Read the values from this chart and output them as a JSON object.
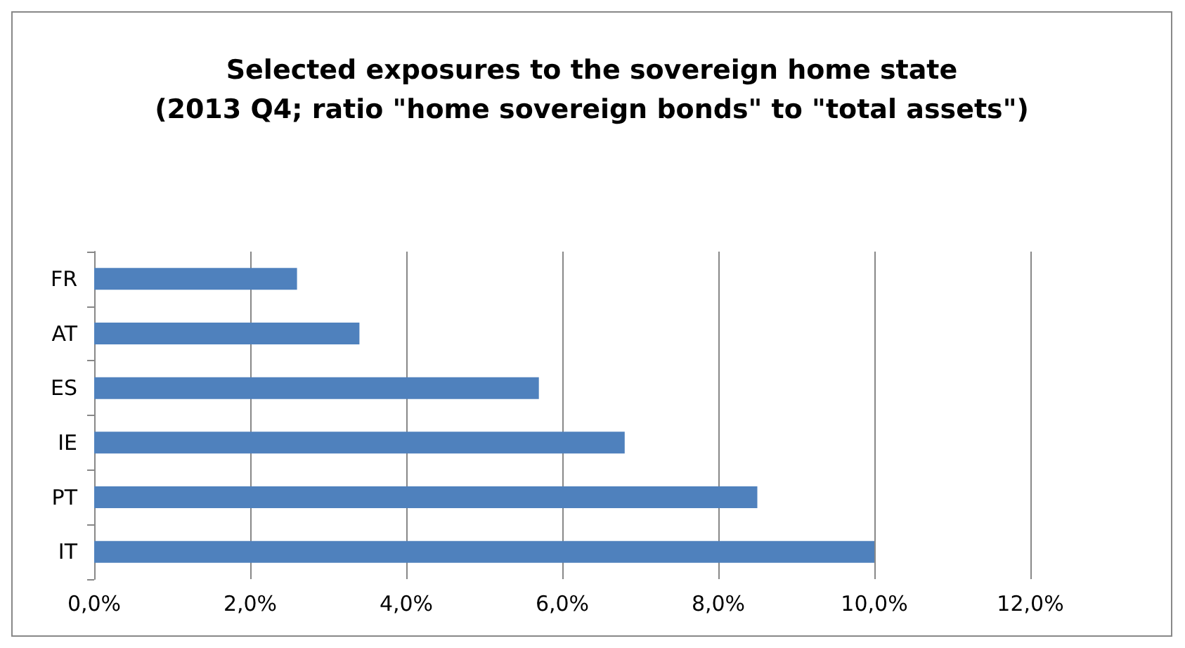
{
  "chart_data": {
    "type": "bar",
    "orientation": "horizontal",
    "title": "Selected exposures to the sovereign home state\n(2013 Q4; ratio \"home sovereign bonds\" to \"total assets\")",
    "categories": [
      "FR",
      "AT",
      "ES",
      "IE",
      "PT",
      "IT"
    ],
    "values": [
      2.6,
      3.4,
      5.7,
      6.8,
      8.5,
      10.0
    ],
    "color": "#4f81bd",
    "xlim": [
      0,
      12
    ],
    "xticks": [
      {
        "value": 0,
        "label": "0,0%"
      },
      {
        "value": 2,
        "label": "2,0%"
      },
      {
        "value": 4,
        "label": "4,0%"
      },
      {
        "value": 6,
        "label": "6,0%"
      },
      {
        "value": 8,
        "label": "8,0%"
      },
      {
        "value": 10,
        "label": "10,0%"
      },
      {
        "value": 12,
        "label": "12,0%"
      }
    ],
    "grid": "x"
  }
}
